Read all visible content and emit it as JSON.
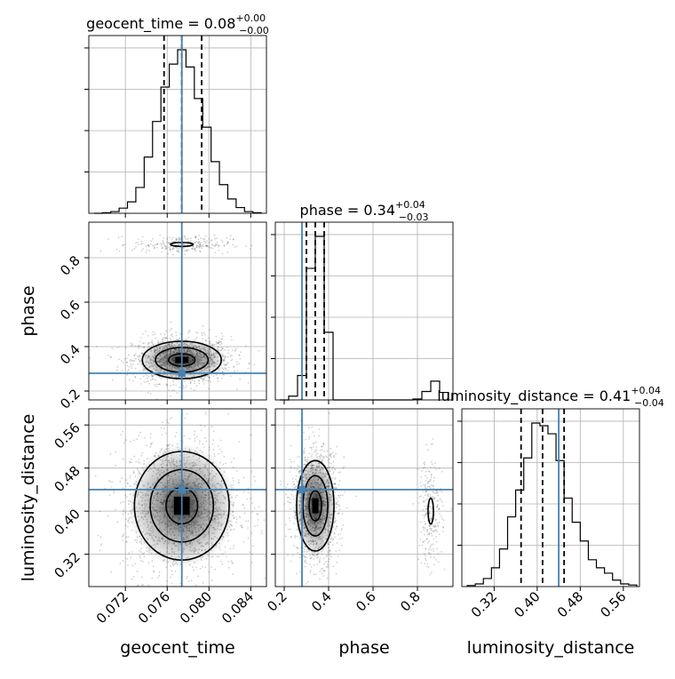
{
  "parameters": [
    "geocent_time",
    "phase",
    "luminosity_distance"
  ],
  "colors": {
    "truth": "#4682b4",
    "hist": "#000000",
    "grid": "#b0b0b0",
    "scatter": "#000000"
  },
  "chart_data": {
    "type": "corner",
    "axes": {
      "geocent_time": {
        "label": "geocent_time",
        "range": [
          0.0685,
          0.0855
        ],
        "ticks": [
          0.072,
          0.076,
          0.08,
          0.084
        ],
        "tick_labels": [
          "0.072",
          "0.076",
          "0.080",
          "0.084"
        ]
      },
      "phase": {
        "label": "phase",
        "range": [
          0.16,
          0.96
        ],
        "ticks": [
          0.2,
          0.4,
          0.6,
          0.8
        ],
        "tick_labels": [
          "0.2",
          "0.4",
          "0.6",
          "0.8"
        ]
      },
      "luminosity_distance": {
        "label": "luminosity_distance",
        "range": [
          0.26,
          0.59
        ],
        "ticks": [
          0.32,
          0.4,
          0.48,
          0.56
        ],
        "tick_labels": [
          "0.32",
          "0.40",
          "0.48",
          "0.56"
        ]
      }
    },
    "truths": {
      "geocent_time": 0.0774,
      "phase": 0.28,
      "luminosity_distance": 0.44
    },
    "titles": {
      "geocent_time": {
        "name": "geocent_time",
        "median": "0.08",
        "plus": "+0.00",
        "minus": "−0.00"
      },
      "phase": {
        "name": "phase",
        "median": "0.34",
        "plus": "+0.04",
        "minus": "−0.03"
      },
      "luminosity_distance": {
        "name": "luminosity_distance",
        "median": "0.41",
        "plus": "+0.04",
        "minus": "−0.04"
      }
    },
    "quantiles": {
      "geocent_time": [
        0.0757,
        0.0774,
        0.0793
      ],
      "phase": [
        0.3,
        0.34,
        0.38
      ],
      "luminosity_distance": [
        0.37,
        0.41,
        0.45
      ]
    },
    "histograms": {
      "geocent_time": {
        "edges": [
          0.069,
          0.0698,
          0.0706,
          0.0714,
          0.0722,
          0.073,
          0.0738,
          0.0746,
          0.0754,
          0.0762,
          0.077,
          0.0778,
          0.0786,
          0.0794,
          0.0802,
          0.081,
          0.0818,
          0.0826,
          0.0834,
          0.0842,
          0.085
        ],
        "counts": [
          0,
          1,
          3,
          9,
          20,
          45,
          98,
          160,
          220,
          260,
          285,
          255,
          200,
          150,
          90,
          50,
          25,
          10,
          3,
          1
        ]
      },
      "phase": {
        "edges": [
          0.18,
          0.22,
          0.26,
          0.3,
          0.34,
          0.38,
          0.42,
          0.46,
          0.5,
          0.54,
          0.58,
          0.62,
          0.66,
          0.7,
          0.74,
          0.78,
          0.82,
          0.86,
          0.9,
          0.94
        ],
        "counts": [
          0,
          20,
          130,
          700,
          870,
          360,
          0,
          0,
          0,
          0,
          0,
          0,
          0,
          0,
          0,
          5,
          45,
          100,
          40
        ]
      },
      "luminosity_distance": {
        "edges": [
          0.27,
          0.285,
          0.3,
          0.315,
          0.33,
          0.345,
          0.36,
          0.375,
          0.39,
          0.405,
          0.42,
          0.435,
          0.45,
          0.465,
          0.48,
          0.495,
          0.51,
          0.525,
          0.54,
          0.555,
          0.57,
          0.585
        ],
        "counts": [
          2,
          5,
          15,
          35,
          70,
          130,
          180,
          240,
          305,
          300,
          285,
          235,
          165,
          120,
          85,
          50,
          35,
          25,
          12,
          5,
          3
        ]
      }
    },
    "contour_levels": 3,
    "grid": true
  }
}
